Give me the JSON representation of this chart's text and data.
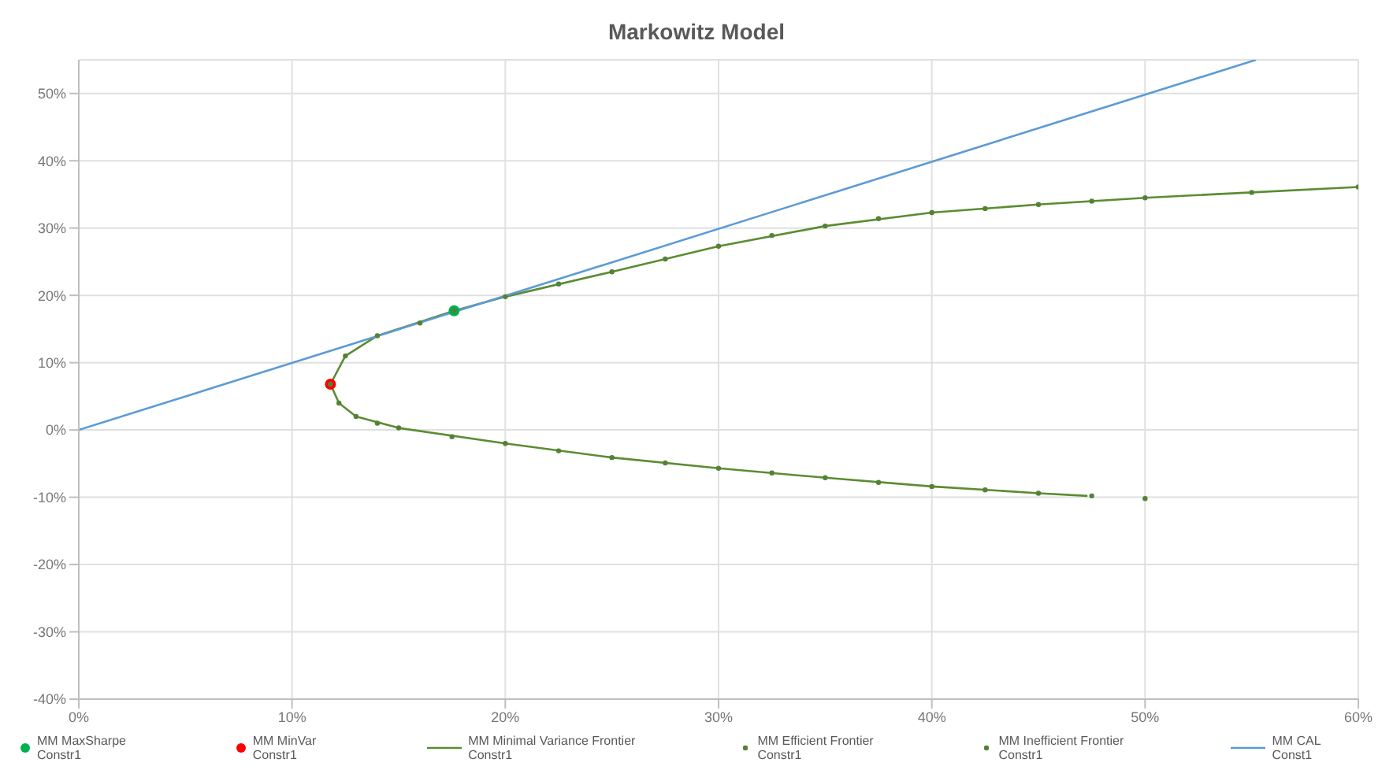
{
  "chart_data": {
    "type": "line",
    "title": "Markowitz Model",
    "xlim": [
      0,
      60
    ],
    "xticks": [
      {
        "value": 0,
        "label": "0%"
      },
      {
        "value": 10,
        "label": "10%"
      },
      {
        "value": 20,
        "label": "20%"
      },
      {
        "value": 30,
        "label": "30%"
      },
      {
        "value": 40,
        "label": "40%"
      },
      {
        "value": 50,
        "label": "50%"
      },
      {
        "value": 60,
        "label": "60%"
      }
    ],
    "ylim": [
      -40,
      55
    ],
    "yticks": [
      {
        "value": -40,
        "label": "-40%"
      },
      {
        "value": -30,
        "label": "-30%"
      },
      {
        "value": -20,
        "label": "-20%"
      },
      {
        "value": -10,
        "label": "-10%"
      },
      {
        "value": 0,
        "label": "0%"
      },
      {
        "value": 10,
        "label": "10%"
      },
      {
        "value": 20,
        "label": "20%"
      },
      {
        "value": 30,
        "label": "30%"
      },
      {
        "value": 40,
        "label": "40%"
      },
      {
        "value": 50,
        "label": "50%"
      }
    ],
    "grid": true,
    "legend": "bottom",
    "series": [
      {
        "name": "MM MaxSharpe Constr1",
        "type": "scatter",
        "marker": "circle",
        "color": "#00b050",
        "x": [
          17.6
        ],
        "values": [
          17.7
        ]
      },
      {
        "name": "MM MinVar Constr1",
        "type": "scatter",
        "marker": "circle",
        "color": "#ff0000",
        "x": [
          11.8
        ],
        "values": [
          6.8
        ]
      },
      {
        "name": "MM Minimal Variance Frontier Constr1",
        "marker": "none",
        "color": "#5b8c32",
        "x": [
          47.3,
          45,
          40,
          35,
          30,
          25,
          20,
          15,
          13,
          12.2,
          11.8,
          12.5,
          14,
          17.6,
          20,
          25,
          30,
          35,
          40,
          45,
          50,
          55,
          60
        ],
        "values": [
          -9.8,
          -9.4,
          -8.4,
          -7.1,
          -5.7,
          -4.1,
          -2.0,
          0.3,
          2.0,
          4.0,
          6.8,
          11.0,
          14.0,
          17.7,
          19.8,
          23.5,
          27.3,
          30.3,
          32.3,
          33.5,
          34.5,
          35.3,
          36.1
        ]
      },
      {
        "name": "MM Efficient Frontier Constr1",
        "type": "scatter",
        "marker": "circle",
        "color": "#548235",
        "x": [
          11.8,
          12.5,
          14,
          16,
          17.6,
          20,
          22.5,
          25,
          27.5,
          30,
          32.5,
          35,
          37.5,
          40,
          42.5,
          45,
          47.5,
          50,
          55,
          60
        ],
        "values": [
          6.8,
          11.0,
          14.0,
          15.9,
          17.7,
          19.8,
          21.7,
          23.5,
          25.4,
          27.3,
          28.9,
          30.3,
          31.4,
          32.3,
          32.9,
          33.5,
          34.0,
          34.5,
          35.3,
          36.1
        ]
      },
      {
        "name": "MM Inefficient Frontier Constr1",
        "type": "scatter",
        "marker": "circle",
        "color": "#548235",
        "x": [
          12.2,
          13,
          14,
          15,
          17.5,
          20,
          22.5,
          25,
          27.5,
          30,
          32.5,
          35,
          37.5,
          40,
          42.5,
          45,
          47.5,
          50
        ],
        "values": [
          4.0,
          2.0,
          1.0,
          0.3,
          -1.0,
          -2.0,
          -3.1,
          -4.1,
          -4.9,
          -5.7,
          -6.4,
          -7.1,
          -7.8,
          -8.4,
          -8.9,
          -9.4,
          -9.8,
          -10.2
        ]
      },
      {
        "name": "MM CAL Const1",
        "marker": "none",
        "color": "#5b9bd5",
        "x": [
          0,
          55.2
        ],
        "values": [
          0,
          55
        ]
      }
    ]
  }
}
